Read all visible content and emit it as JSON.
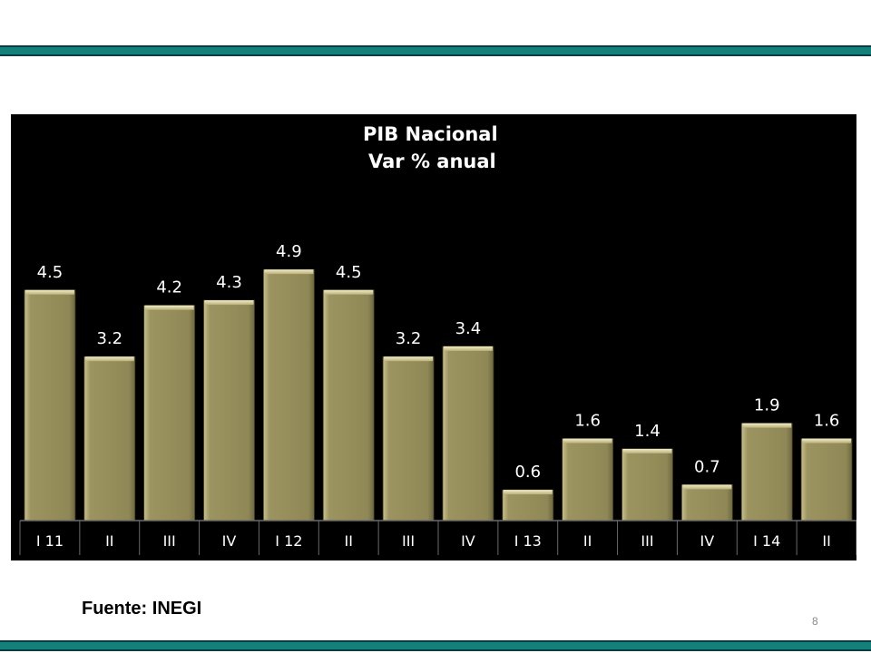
{
  "slide": {
    "source": "Fuente: INEGI",
    "page_number": "8",
    "band_color": "#13807c"
  },
  "chart_data": {
    "type": "bar",
    "title": "PIB Nacional",
    "subtitle": "Var % anual",
    "categories": [
      "I 11",
      "II",
      "III",
      "IV",
      "I 12",
      "II",
      "III",
      "IV",
      "I 13",
      "II",
      "III",
      "IV",
      "I 14",
      "II"
    ],
    "values": [
      4.5,
      3.2,
      4.2,
      4.3,
      4.9,
      4.5,
      3.2,
      3.4,
      0.6,
      1.6,
      1.4,
      0.7,
      1.9,
      1.6
    ],
    "data_labels": [
      "4.5",
      "3.2",
      "4.2",
      "4.3",
      "4.9",
      "4.5",
      "3.2",
      "3.4",
      "0.6",
      "1.6",
      "1.4",
      "0.7",
      "1.9",
      "1.6"
    ],
    "bar_color": "#9c9460",
    "background": "#000000",
    "grid": false,
    "legend": "none"
  }
}
